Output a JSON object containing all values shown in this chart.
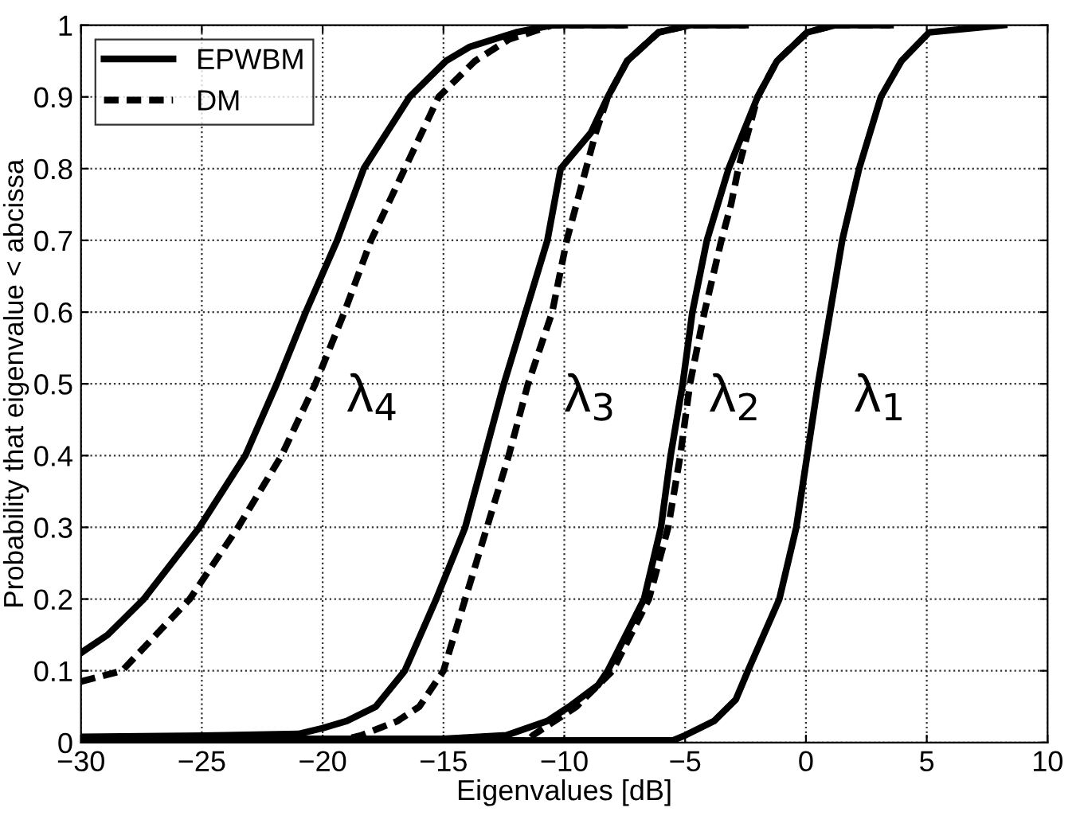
{
  "chart_data": {
    "type": "line",
    "xlabel": "Eigenvalues [dB]",
    "ylabel": "Probability that eigenvalue < abcissa",
    "xlim": [
      -30,
      10
    ],
    "ylim": [
      0,
      1
    ],
    "xticks": [
      -30,
      -25,
      -20,
      -15,
      -10,
      -5,
      0,
      5,
      10
    ],
    "yticks": [
      0,
      0.1,
      0.2,
      0.3,
      0.4,
      0.5,
      0.6,
      0.7,
      0.8,
      0.9,
      1
    ],
    "grid": true,
    "legend": "top left",
    "marker": "none",
    "series": [
      {
        "name": "EPWBM",
        "color": "#000000",
        "line_style": "solid",
        "x": [
          -30,
          -28.9,
          -27.4,
          -25.1,
          -23.2,
          -21.9,
          -20.7,
          -19.4,
          -18.3,
          -16.4,
          -14.9,
          -13.9,
          -12.0,
          -10.5,
          -7.5
        ],
        "values": [
          0.125,
          0.15,
          0.2,
          0.3,
          0.4,
          0.5,
          0.6,
          0.7,
          0.8,
          0.9,
          0.95,
          0.97,
          0.99,
          1,
          1
        ]
      },
      {
        "name": "DM",
        "color": "#000000",
        "line_style": "dashed",
        "x": [
          -30,
          -28.3,
          -25.5,
          -23.5,
          -21.7,
          -20.3,
          -19.1,
          -18.0,
          -16.6,
          -15.2,
          -13.7,
          -12.3,
          -10.5,
          -7.5
        ],
        "values": [
          0.085,
          0.1,
          0.2,
          0.3,
          0.4,
          0.5,
          0.6,
          0.7,
          0.8,
          0.9,
          0.95,
          0.98,
          1,
          1
        ]
      },
      {
        "color": "#000000",
        "line_style": "solid",
        "x": [
          -30,
          -24,
          -21,
          -20,
          -19.0,
          -17.8,
          -16.6,
          -15.3,
          -14.1,
          -13.3,
          -12.5,
          -11.6,
          -10.7,
          -10.15,
          -8.9,
          -8.2,
          -7.4,
          -6.1,
          -4.8,
          -2.5
        ],
        "values": [
          0.008,
          0.01,
          0.012,
          0.02,
          0.03,
          0.05,
          0.1,
          0.2,
          0.3,
          0.4,
          0.5,
          0.6,
          0.7,
          0.8,
          0.85,
          0.9,
          0.95,
          0.99,
          1,
          1
        ]
      },
      {
        "color": "#000000",
        "line_style": "dashed",
        "x": [
          -30,
          -19,
          -18.4,
          -16.9,
          -16.0,
          -15.0,
          -14.1,
          -13.2,
          -12.3,
          -11.5,
          -10.5,
          -9.9,
          -9.1,
          -8.7,
          -8.2,
          -7.4,
          -6.1,
          -4.8,
          -2.5
        ],
        "values": [
          0.003,
          0.005,
          0.01,
          0.03,
          0.05,
          0.1,
          0.2,
          0.3,
          0.4,
          0.5,
          0.6,
          0.7,
          0.8,
          0.85,
          0.9,
          0.95,
          0.99,
          1,
          1
        ]
      },
      {
        "color": "#000000",
        "line_style": "solid",
        "x": [
          -30,
          -15,
          -12.4,
          -10.7,
          -9.8,
          -8.6,
          -8.2,
          -6.7,
          -6.0,
          -5.6,
          -5.1,
          -4.7,
          -4.1,
          -3.2,
          -2.6,
          -2.0,
          -1.2,
          0.05,
          1.2,
          3.5
        ],
        "values": [
          0.005,
          0.005,
          0.01,
          0.03,
          0.05,
          0.08,
          0.1,
          0.2,
          0.3,
          0.4,
          0.5,
          0.6,
          0.7,
          0.8,
          0.85,
          0.9,
          0.95,
          0.99,
          1,
          1
        ]
      },
      {
        "color": "#000000",
        "line_style": "dashed",
        "x": [
          -30,
          -11.5,
          -11.3,
          -10.4,
          -9.5,
          -8.0,
          -6.5,
          -5.7,
          -5.2,
          -4.8,
          -4.2,
          -3.5,
          -3.1,
          -2.8,
          -2.0,
          -1.2,
          0.05,
          1.2,
          3.5
        ],
        "values": [
          0.0,
          0.003,
          0.01,
          0.03,
          0.05,
          0.1,
          0.2,
          0.3,
          0.4,
          0.5,
          0.6,
          0.7,
          0.75,
          0.8,
          0.9,
          0.95,
          0.99,
          1,
          1
        ]
      },
      {
        "color": "#000000",
        "line_style": "solid",
        "x": [
          -30,
          -5.5,
          -5.0,
          -3.8,
          -2.9,
          -2.4,
          -1.1,
          -0.4,
          0.05,
          0.5,
          1.0,
          1.5,
          2.2,
          3.1,
          3.95,
          5.1,
          8.2
        ],
        "values": [
          0.002,
          0.003,
          0.01,
          0.03,
          0.06,
          0.1,
          0.2,
          0.3,
          0.4,
          0.5,
          0.6,
          0.7,
          0.8,
          0.9,
          0.95,
          0.99,
          1
        ]
      }
    ],
    "annotations": [
      "λ$_{4}$",
      "λ$_{3}$",
      "λ$_{2}$",
      "λ$_{1}$"
    ]
  }
}
